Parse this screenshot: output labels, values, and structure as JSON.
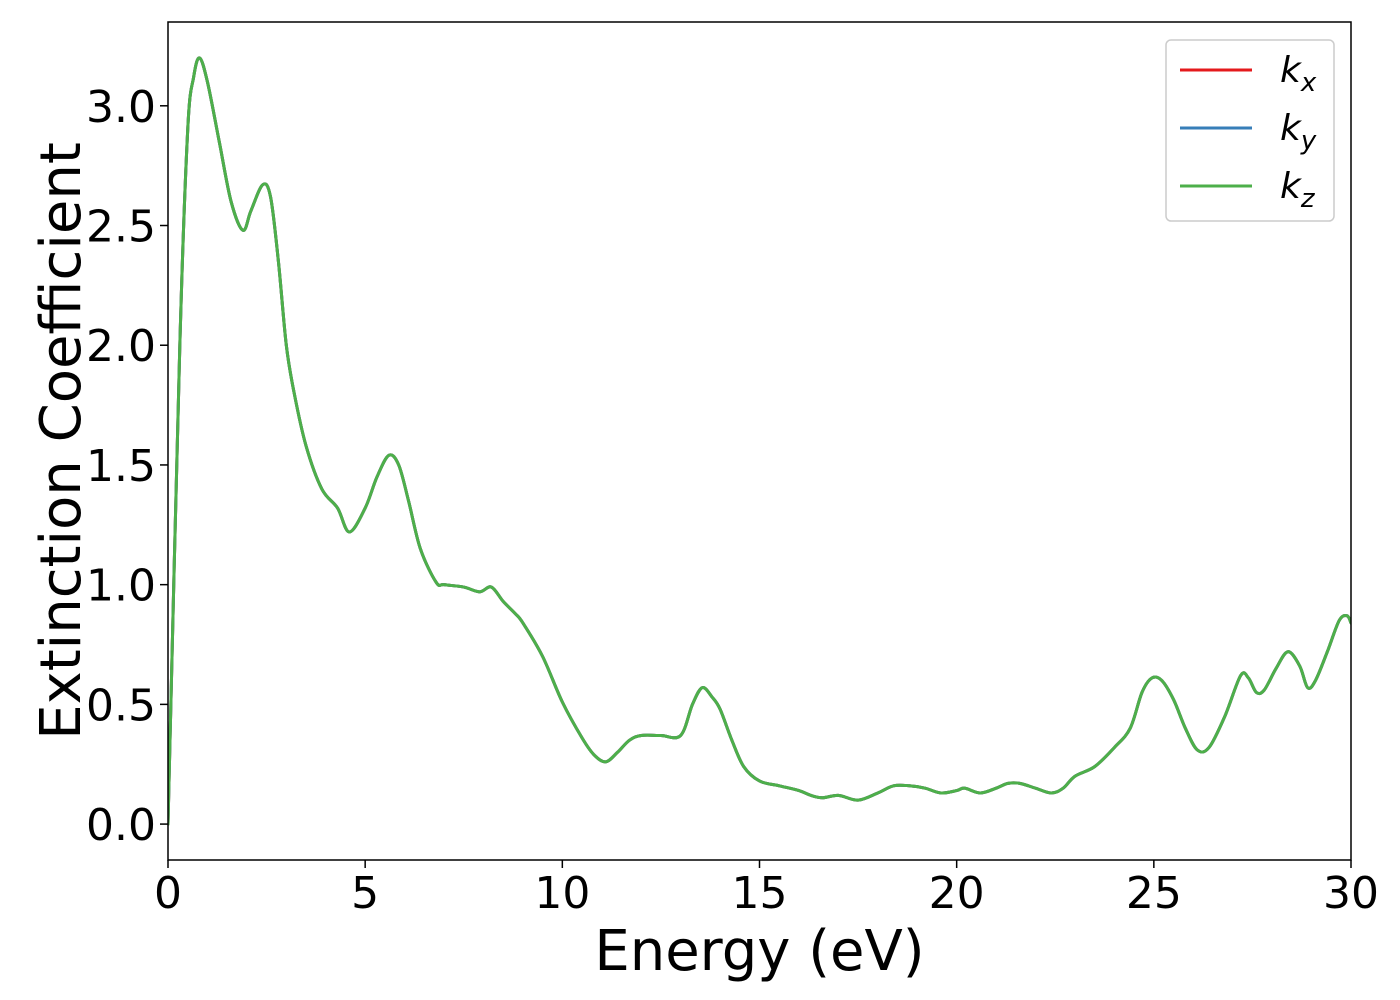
{
  "chart_data": {
    "type": "line",
    "title": "",
    "xlabel": "Energy (eV)",
    "ylabel": "Extinction Coefficient",
    "xlim": [
      0,
      30
    ],
    "ylim": [
      -0.15,
      3.35
    ],
    "xticks": [
      0,
      5,
      10,
      15,
      20,
      25,
      30
    ],
    "xtick_labels": [
      "0",
      "5",
      "10",
      "15",
      "20",
      "25",
      "30"
    ],
    "yticks": [
      0.0,
      0.5,
      1.0,
      1.5,
      2.0,
      2.5,
      3.0
    ],
    "ytick_labels": [
      "0.0",
      "0.5",
      "1.0",
      "1.5",
      "2.0",
      "2.5",
      "3.0"
    ],
    "grid": false,
    "legend_position": "top-right",
    "x": [
      0,
      0.3,
      0.5,
      0.65,
      0.8,
      1.0,
      1.3,
      1.6,
      1.9,
      2.1,
      2.4,
      2.6,
      2.8,
      3.0,
      3.2,
      3.5,
      3.9,
      4.3,
      4.6,
      5.0,
      5.3,
      5.6,
      5.85,
      6.1,
      6.4,
      6.8,
      7.0,
      7.5,
      7.9,
      8.2,
      8.5,
      8.8,
      9.0,
      9.5,
      10.0,
      10.5,
      10.8,
      11.1,
      11.4,
      11.7,
      12.0,
      12.5,
      13.0,
      13.3,
      13.55,
      13.8,
      14.0,
      14.3,
      14.6,
      15.0,
      15.5,
      16.0,
      16.3,
      16.6,
      17.0,
      17.5,
      18.0,
      18.4,
      18.8,
      19.2,
      19.6,
      20.0,
      20.2,
      20.6,
      21.0,
      21.3,
      21.6,
      22.0,
      22.4,
      22.7,
      23.0,
      23.5,
      24.0,
      24.4,
      24.7,
      24.95,
      25.2,
      25.5,
      25.8,
      26.1,
      26.4,
      26.8,
      27.2,
      27.4,
      27.6,
      27.8,
      28.1,
      28.4,
      28.7,
      28.9,
      29.1,
      29.4,
      29.7,
      29.9,
      30.0
    ],
    "series": [
      {
        "name": "k_x",
        "color": "#e41a1c",
        "values": [
          0.0,
          2.0,
          2.9,
          3.12,
          3.2,
          3.1,
          2.85,
          2.6,
          2.48,
          2.56,
          2.67,
          2.62,
          2.35,
          2.0,
          1.8,
          1.58,
          1.4,
          1.32,
          1.22,
          1.32,
          1.45,
          1.54,
          1.5,
          1.35,
          1.15,
          1.01,
          1.0,
          0.99,
          0.97,
          0.99,
          0.93,
          0.88,
          0.84,
          0.7,
          0.51,
          0.36,
          0.29,
          0.26,
          0.3,
          0.35,
          0.37,
          0.37,
          0.37,
          0.5,
          0.57,
          0.53,
          0.48,
          0.35,
          0.24,
          0.18,
          0.16,
          0.14,
          0.12,
          0.11,
          0.12,
          0.1,
          0.13,
          0.16,
          0.16,
          0.15,
          0.13,
          0.14,
          0.15,
          0.13,
          0.15,
          0.17,
          0.17,
          0.15,
          0.13,
          0.15,
          0.2,
          0.24,
          0.32,
          0.4,
          0.55,
          0.61,
          0.6,
          0.52,
          0.4,
          0.31,
          0.32,
          0.45,
          0.62,
          0.61,
          0.55,
          0.56,
          0.65,
          0.72,
          0.66,
          0.57,
          0.6,
          0.72,
          0.85,
          0.87,
          0.84
        ]
      },
      {
        "name": "k_y",
        "color": "#377eb8",
        "values": [
          0.0,
          2.0,
          2.9,
          3.12,
          3.2,
          3.1,
          2.85,
          2.6,
          2.48,
          2.56,
          2.67,
          2.62,
          2.35,
          2.0,
          1.8,
          1.58,
          1.4,
          1.32,
          1.22,
          1.32,
          1.45,
          1.54,
          1.5,
          1.35,
          1.15,
          1.01,
          1.0,
          0.99,
          0.97,
          0.99,
          0.93,
          0.88,
          0.84,
          0.7,
          0.51,
          0.36,
          0.29,
          0.26,
          0.3,
          0.35,
          0.37,
          0.37,
          0.37,
          0.5,
          0.57,
          0.53,
          0.48,
          0.35,
          0.24,
          0.18,
          0.16,
          0.14,
          0.12,
          0.11,
          0.12,
          0.1,
          0.13,
          0.16,
          0.16,
          0.15,
          0.13,
          0.14,
          0.15,
          0.13,
          0.15,
          0.17,
          0.17,
          0.15,
          0.13,
          0.15,
          0.2,
          0.24,
          0.32,
          0.4,
          0.55,
          0.61,
          0.6,
          0.52,
          0.4,
          0.31,
          0.32,
          0.45,
          0.62,
          0.61,
          0.55,
          0.56,
          0.65,
          0.72,
          0.66,
          0.57,
          0.6,
          0.72,
          0.85,
          0.87,
          0.84
        ]
      },
      {
        "name": "k_z",
        "color": "#4daf4a",
        "values": [
          0.0,
          2.0,
          2.9,
          3.12,
          3.2,
          3.1,
          2.85,
          2.6,
          2.48,
          2.56,
          2.67,
          2.62,
          2.35,
          2.0,
          1.8,
          1.58,
          1.4,
          1.32,
          1.22,
          1.32,
          1.45,
          1.54,
          1.5,
          1.35,
          1.15,
          1.01,
          1.0,
          0.99,
          0.97,
          0.99,
          0.93,
          0.88,
          0.84,
          0.7,
          0.51,
          0.36,
          0.29,
          0.26,
          0.3,
          0.35,
          0.37,
          0.37,
          0.37,
          0.5,
          0.57,
          0.53,
          0.48,
          0.35,
          0.24,
          0.18,
          0.16,
          0.14,
          0.12,
          0.11,
          0.12,
          0.1,
          0.13,
          0.16,
          0.16,
          0.15,
          0.13,
          0.14,
          0.15,
          0.13,
          0.15,
          0.17,
          0.17,
          0.15,
          0.13,
          0.15,
          0.2,
          0.24,
          0.32,
          0.4,
          0.55,
          0.61,
          0.6,
          0.52,
          0.4,
          0.31,
          0.32,
          0.45,
          0.62,
          0.61,
          0.55,
          0.56,
          0.65,
          0.72,
          0.66,
          0.57,
          0.6,
          0.72,
          0.85,
          0.87,
          0.84
        ]
      }
    ],
    "legend": [
      {
        "base": "k",
        "sub": "x",
        "color": "#e41a1c"
      },
      {
        "base": "k",
        "sub": "y",
        "color": "#377eb8"
      },
      {
        "base": "k",
        "sub": "z",
        "color": "#4daf4a"
      }
    ]
  }
}
